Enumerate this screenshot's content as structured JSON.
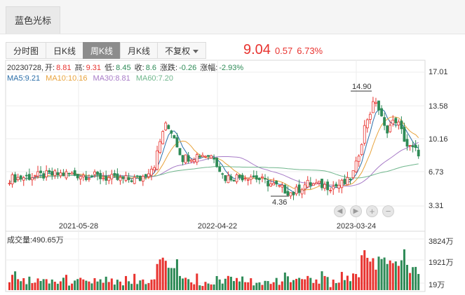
{
  "tabs": {
    "stock_tab": "蓝色光标"
  },
  "periods": [
    {
      "label": "分时图",
      "active": false
    },
    {
      "label": "日K线",
      "active": false
    },
    {
      "label": "周K线",
      "active": true
    },
    {
      "label": "月K线",
      "active": false
    }
  ],
  "adjust": {
    "label": "不复权"
  },
  "quote": {
    "price": "9.04",
    "change": "0.57",
    "change_pct": "6.73%",
    "color": "#e8332f"
  },
  "info": {
    "date": "20230728,",
    "open_label": "开:",
    "open": "8.81",
    "high_label": "高:",
    "high": "9.31",
    "low_label": "低:",
    "low": "8.45",
    "close_label": "收:",
    "close": "8.6",
    "chg_label": "涨跌:",
    "chg": "-0.26",
    "pct_label": "涨幅:",
    "pct": "-2.93%"
  },
  "ma": [
    {
      "label": "MA5:9.21",
      "color": "#2b6ea8"
    },
    {
      "label": "MA10:10.16",
      "color": "#e8a33c"
    },
    {
      "label": "MA30:8.81",
      "color": "#a77bc7"
    },
    {
      "label": "MA60:7.20",
      "color": "#6fb68c"
    }
  ],
  "price_axis": [
    "17.01",
    "13.58",
    "10.16",
    "6.73",
    "3.31"
  ],
  "volume_axis": [
    "3824万",
    "1921万",
    "19万"
  ],
  "volume_label": "成交量:490.65万",
  "date_axis": [
    "2021-05-28",
    "2022-04-22",
    "2023-03-24"
  ],
  "annotations": {
    "high": "14.90",
    "low": "4.36"
  },
  "colors": {
    "up": "#e8332f",
    "down": "#2e8b57"
  },
  "nav_icons": [
    "left-icon",
    "right-icon",
    "zoom-in-icon",
    "zoom-out-icon"
  ],
  "nav_glyphs": [
    "◀",
    "▶",
    "+",
    "−"
  ]
}
